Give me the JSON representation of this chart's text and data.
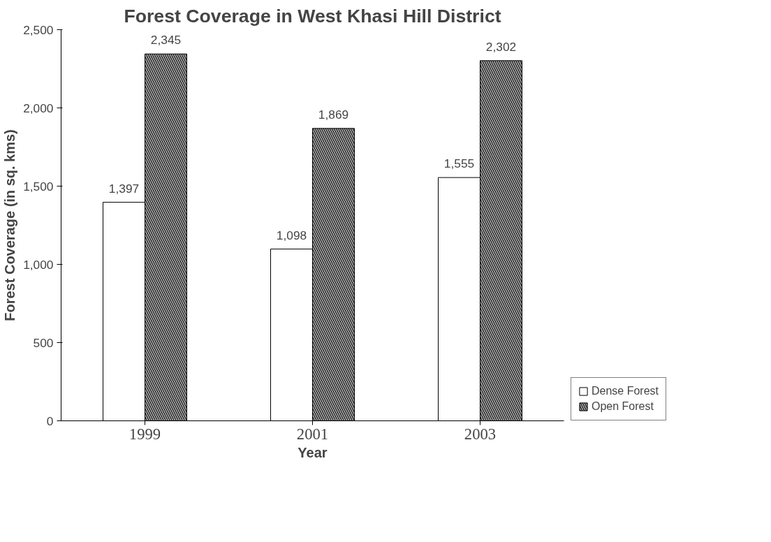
{
  "chart_data": {
    "type": "bar",
    "title": "Forest Coverage in West Khasi Hill District",
    "xlabel": "Year",
    "ylabel": "Forest Coverage (in sq. kms)",
    "categories": [
      "1999",
      "2001",
      "2003"
    ],
    "series": [
      {
        "name": "Dense Forest",
        "color": "#ffffff",
        "values": [
          1397,
          1098,
          1555
        ],
        "value_labels": [
          "1,397",
          "1,098",
          "1,555"
        ]
      },
      {
        "name": "Open Forest",
        "color": "#a0a0a0",
        "values": [
          2345,
          1869,
          2302
        ],
        "value_labels": [
          "2,345",
          "1,869",
          "2,302"
        ]
      }
    ],
    "ylim": [
      0,
      2500
    ],
    "yticks": [
      0,
      {
        "value": 500,
        "label": "500"
      },
      {
        "value": 1000,
        "label": "1,000"
      },
      {
        "value": 1500,
        "label": "1,500"
      },
      {
        "value": 2000,
        "label": "2,000"
      },
      {
        "value": 2500,
        "label": "2,500"
      }
    ],
    "grid": false,
    "legend": "bottom right"
  }
}
